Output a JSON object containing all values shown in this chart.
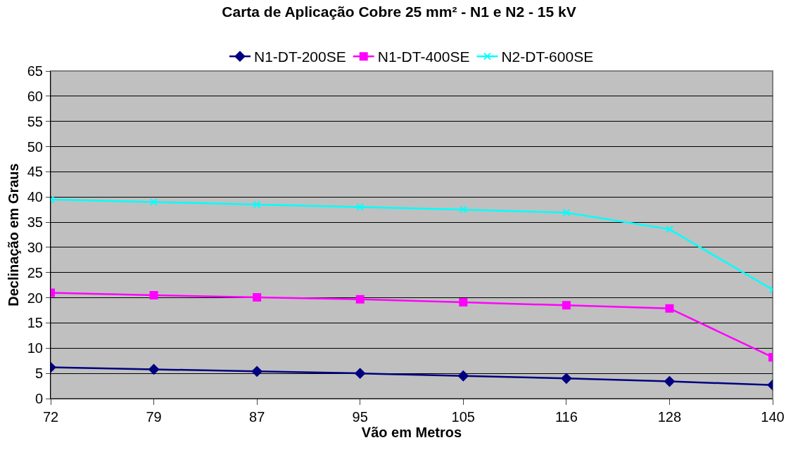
{
  "chart_data": {
    "type": "line",
    "title": "Carta de Aplicação Cobre 25 mm² - N1 e N2 - 15 kV",
    "xlabel": "Vão em Metros",
    "ylabel": "Declinação em Graus",
    "categories": [
      "72",
      "79",
      "87",
      "95",
      "105",
      "116",
      "128",
      "140"
    ],
    "series": [
      {
        "name": "N1-DT-200SE",
        "color": "#000080",
        "marker": "diamond",
        "values": [
          6.2,
          5.8,
          5.4,
          5.0,
          4.5,
          4.0,
          3.4,
          2.7
        ]
      },
      {
        "name": "N1-DT-400SE",
        "color": "#ff00ff",
        "marker": "square",
        "values": [
          21.0,
          20.5,
          20.1,
          19.7,
          19.1,
          18.5,
          17.9,
          8.2
        ]
      },
      {
        "name": "N2-DT-600SE",
        "color": "#00ffff",
        "marker": "cross",
        "values": [
          39.5,
          39.0,
          38.5,
          38.0,
          37.5,
          36.9,
          33.6,
          21.6
        ]
      }
    ],
    "ylim": [
      0,
      65
    ],
    "yticks": [
      0,
      5,
      10,
      15,
      20,
      25,
      30,
      35,
      40,
      45,
      50,
      55,
      60,
      65
    ],
    "grid": "y",
    "legend": "top"
  }
}
